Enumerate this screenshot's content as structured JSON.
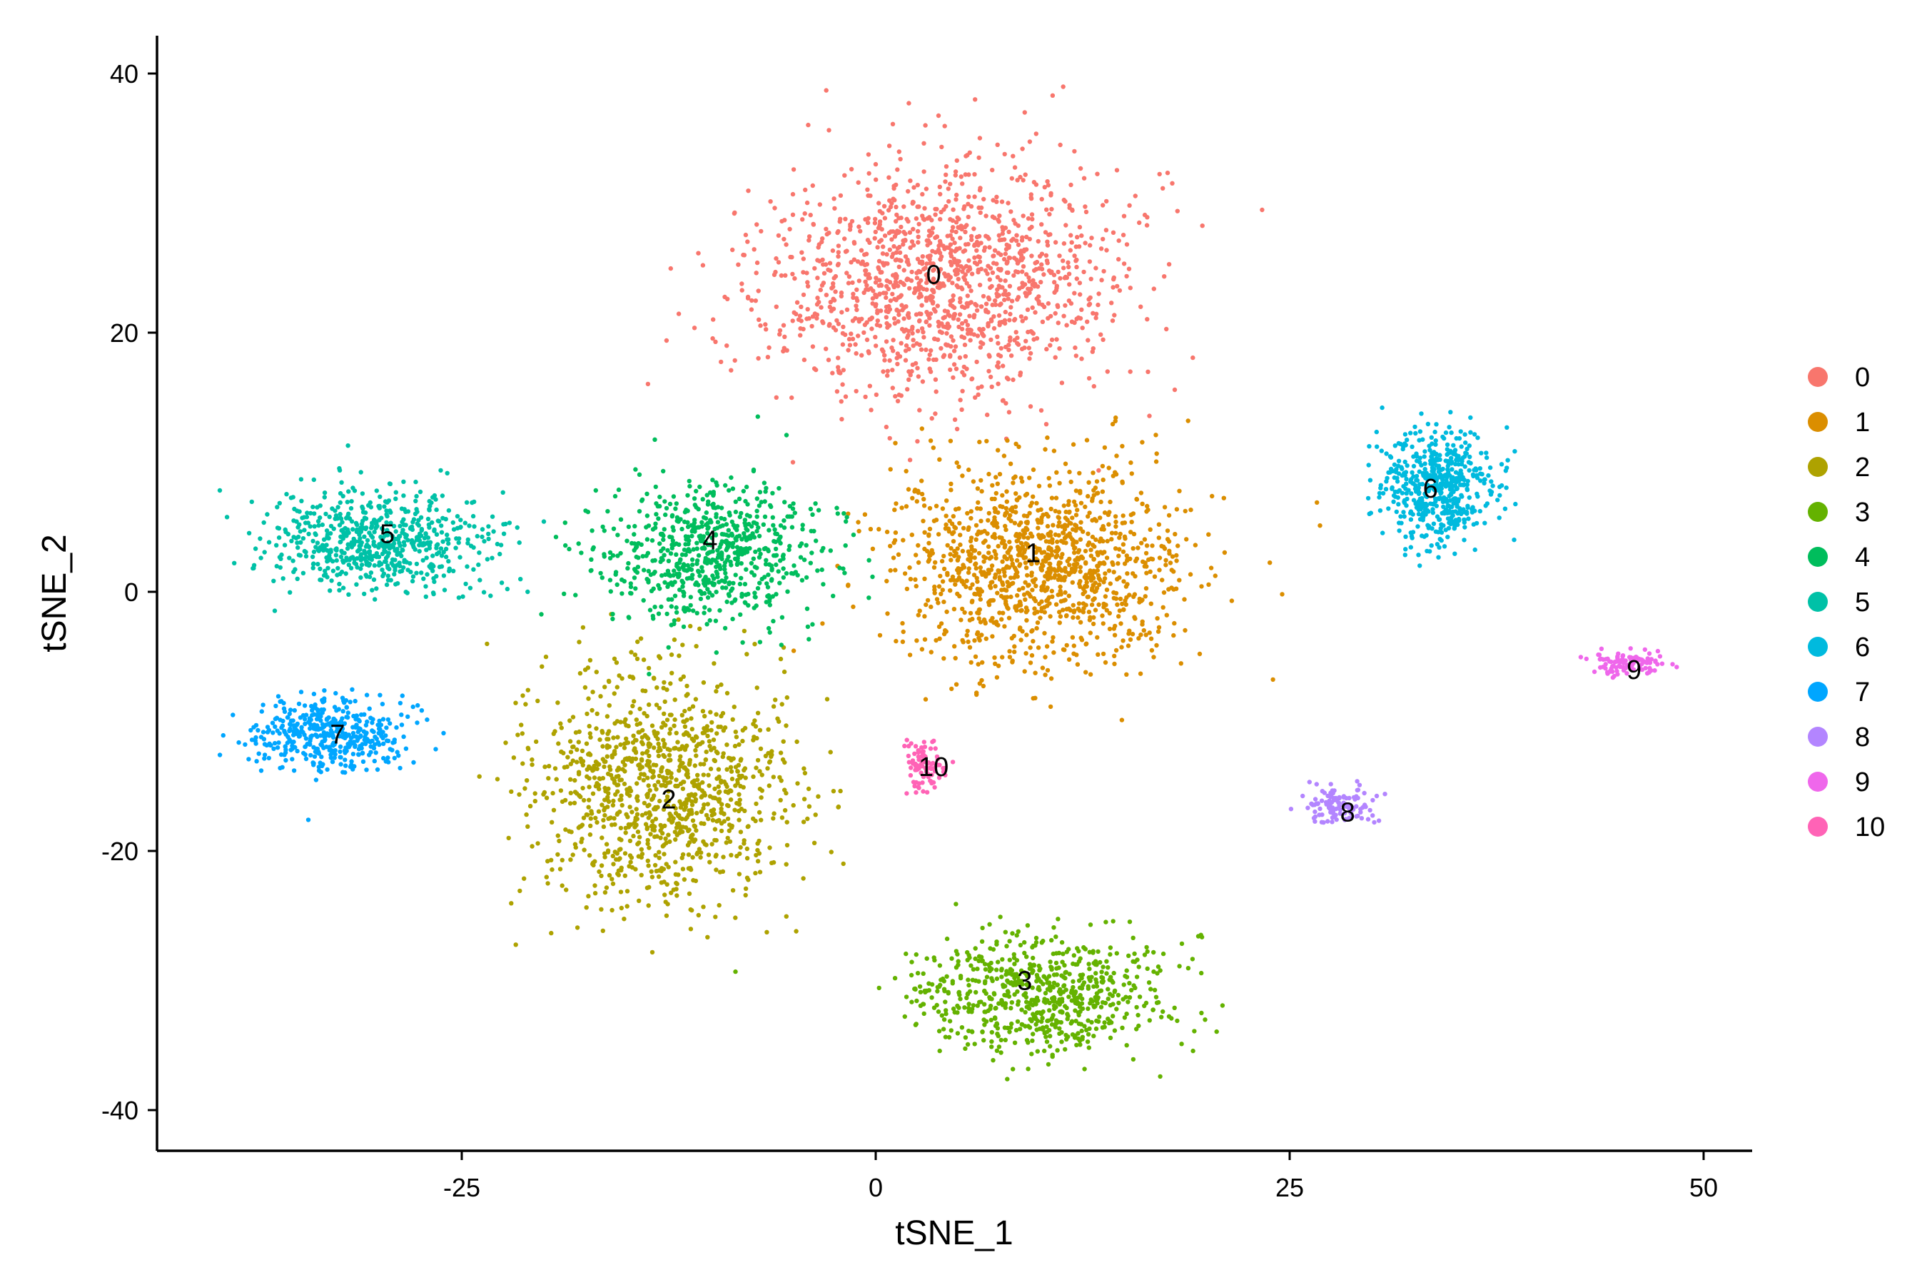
{
  "chart_data": {
    "type": "scatter",
    "title": "",
    "xlabel": "tSNE_1",
    "ylabel": "tSNE_2",
    "xlim": [
      -43,
      53
    ],
    "ylim": [
      -43,
      43
    ],
    "x_ticks": [
      -25,
      0,
      25,
      50
    ],
    "y_ticks": [
      40,
      20,
      0,
      -20,
      -40
    ],
    "grid": false,
    "legend_position": "right",
    "series": [
      {
        "name": "0",
        "color": "#F8766D",
        "approx_points": 1350,
        "center": [
          4,
          24
        ],
        "spread": [
          10,
          8
        ],
        "label_at": [
          3.5,
          24.5
        ],
        "points": [
          [
            -8,
            26
          ],
          [
            -6,
            22
          ],
          [
            -3,
            28
          ],
          [
            0,
            33
          ],
          [
            3,
            36
          ],
          [
            6,
            38
          ],
          [
            9,
            37
          ],
          [
            12,
            34
          ],
          [
            15,
            29
          ],
          [
            16,
            22
          ],
          [
            14,
            17
          ],
          [
            10,
            14
          ],
          [
            6,
            15
          ],
          [
            2,
            17
          ],
          [
            -2,
            16
          ],
          [
            -6,
            15
          ],
          [
            -9,
            19
          ],
          [
            -5,
            10
          ],
          [
            8,
            30
          ],
          [
            4,
            20
          ],
          [
            -1,
            24
          ],
          [
            11,
            22
          ]
        ]
      },
      {
        "name": "1",
        "color": "#DB8E00",
        "approx_points": 1200,
        "center": [
          10,
          2
        ],
        "spread": [
          8,
          7
        ],
        "label_at": [
          9.5,
          3
        ]
      },
      {
        "name": "2",
        "color": "#AEA200",
        "approx_points": 1100,
        "center": [
          -13,
          -15
        ],
        "spread": [
          7,
          8
        ],
        "label_at": [
          -12.5,
          -16
        ]
      },
      {
        "name": "3",
        "color": "#64B200",
        "approx_points": 700,
        "center": [
          10,
          -31
        ],
        "spread": [
          7,
          4
        ],
        "label_at": [
          9,
          -30
        ]
      },
      {
        "name": "4",
        "color": "#00BD5C",
        "approx_points": 700,
        "center": [
          -10,
          3
        ],
        "spread": [
          6,
          5
        ],
        "label_at": [
          -10,
          4
        ]
      },
      {
        "name": "5",
        "color": "#00C1A7",
        "approx_points": 650,
        "center": [
          -30,
          4
        ],
        "spread": [
          6,
          3.5
        ],
        "label_at": [
          -29.5,
          4.5
        ]
      },
      {
        "name": "6",
        "color": "#00BADE",
        "approx_points": 550,
        "center": [
          34,
          8
        ],
        "spread": [
          3,
          4
        ],
        "label_at": [
          33.5,
          8
        ]
      },
      {
        "name": "7",
        "color": "#00A6FF",
        "approx_points": 450,
        "center": [
          -33,
          -11
        ],
        "spread": [
          4,
          2.5
        ],
        "label_at": [
          -32.5,
          -11
        ]
      },
      {
        "name": "8",
        "color": "#B385FF",
        "approx_points": 120,
        "center": [
          28,
          -16.5
        ],
        "spread": [
          2,
          1.2
        ],
        "label_at": [
          28.5,
          -17
        ]
      },
      {
        "name": "9",
        "color": "#EF67EB",
        "approx_points": 110,
        "center": [
          45.5,
          -5.5
        ],
        "spread": [
          2,
          0.8
        ],
        "label_at": [
          45.8,
          -6
        ]
      },
      {
        "name": "10",
        "color": "#FF63B6",
        "approx_points": 90,
        "center": [
          3,
          -13.5
        ],
        "spread": [
          1.2,
          2.5
        ],
        "label_at": [
          3.5,
          -13.5
        ]
      }
    ]
  }
}
